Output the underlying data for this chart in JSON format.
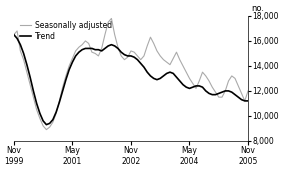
{
  "ylabel": "no.",
  "ylim": [
    8000,
    18000
  ],
  "yticks": [
    8000,
    10000,
    12000,
    14000,
    16000,
    18000
  ],
  "trend_color": "#000000",
  "seasonal_color": "#aaaaaa",
  "trend_label": "Trend",
  "seasonal_label": "Seasonally adjusted",
  "background_color": "#ffffff",
  "x_tick_positions": [
    0,
    18,
    36,
    54,
    72
  ],
  "x_tick_labels": [
    "Nov\n1999",
    "May\n2001",
    "Nov\n2002",
    "May\n2004",
    "Nov\n2005"
  ],
  "trend_data": [
    16500,
    16200,
    15700,
    15000,
    14100,
    13100,
    12000,
    11000,
    10200,
    9600,
    9300,
    9400,
    9700,
    10300,
    11100,
    12000,
    12900,
    13700,
    14300,
    14800,
    15100,
    15300,
    15400,
    15400,
    15400,
    15300,
    15300,
    15200,
    15400,
    15600,
    15700,
    15600,
    15400,
    15100,
    14900,
    14800,
    14800,
    14700,
    14500,
    14200,
    13900,
    13500,
    13200,
    13000,
    12900,
    13000,
    13200,
    13400,
    13500,
    13400,
    13100,
    12800,
    12500,
    12300,
    12200,
    12300,
    12400,
    12400,
    12300,
    12000,
    11800,
    11700,
    11700,
    11800,
    11900,
    12000,
    12000,
    11900,
    11700,
    11500,
    11300,
    11200,
    11200
  ],
  "seasonal_data": [
    16500,
    16800,
    15200,
    14500,
    13500,
    12500,
    11500,
    10500,
    9800,
    9200,
    8900,
    9100,
    9500,
    10200,
    11200,
    12300,
    13200,
    14000,
    14600,
    15200,
    15500,
    15700,
    16000,
    15800,
    15100,
    15000,
    14800,
    15400,
    16500,
    17500,
    17800,
    16500,
    15500,
    14800,
    14500,
    14700,
    15200,
    15100,
    14800,
    14500,
    14800,
    15600,
    16300,
    15800,
    15200,
    14800,
    14500,
    14300,
    14100,
    14600,
    15100,
    14500,
    14000,
    13500,
    13000,
    12600,
    12200,
    12800,
    13500,
    13200,
    12800,
    12300,
    11900,
    11500,
    11500,
    12000,
    12800,
    13200,
    13000,
    12400,
    11800,
    11200,
    12000
  ]
}
